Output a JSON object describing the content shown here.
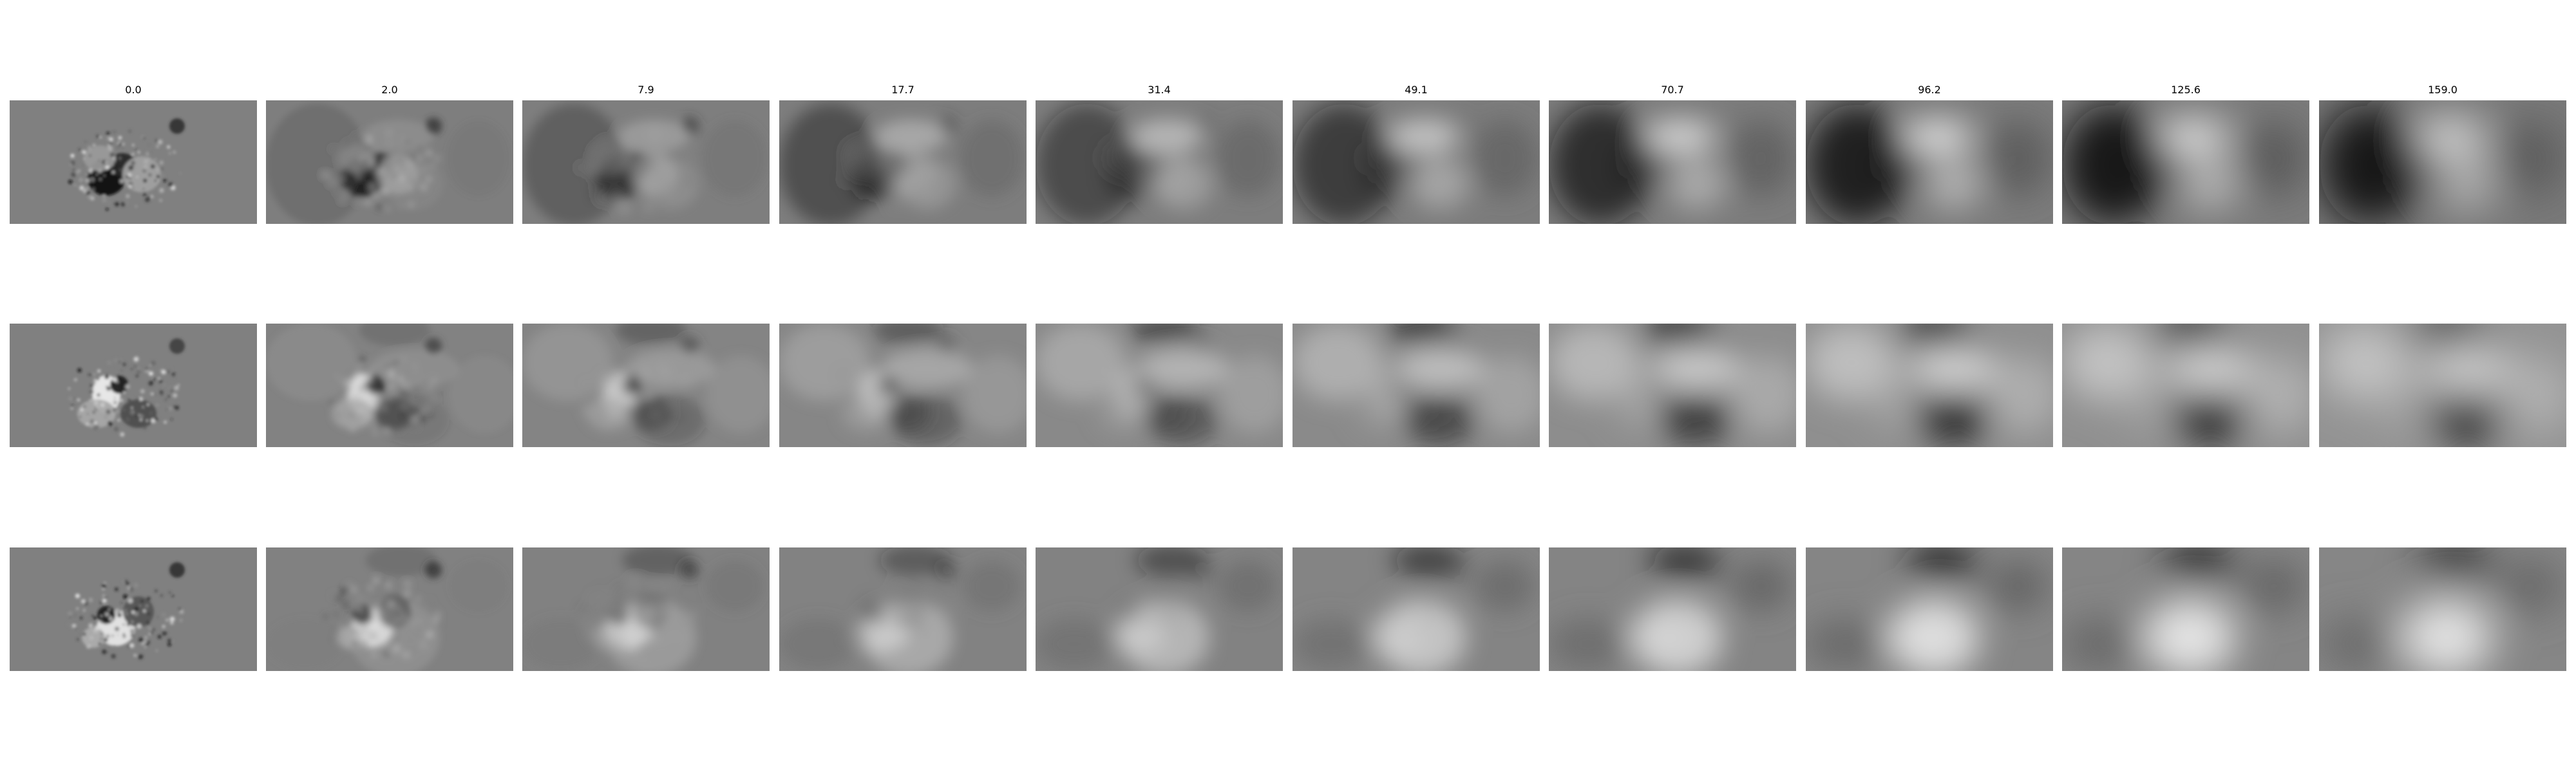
{
  "figure": {
    "column_titles": [
      "0.0",
      "2.0",
      "7.9",
      "17.7",
      "31.4",
      "49.1",
      "70.7",
      "96.2",
      "125.6",
      "159.0"
    ],
    "row_count": 3,
    "background_gray": "#808080",
    "colormap": "grayscale"
  }
}
